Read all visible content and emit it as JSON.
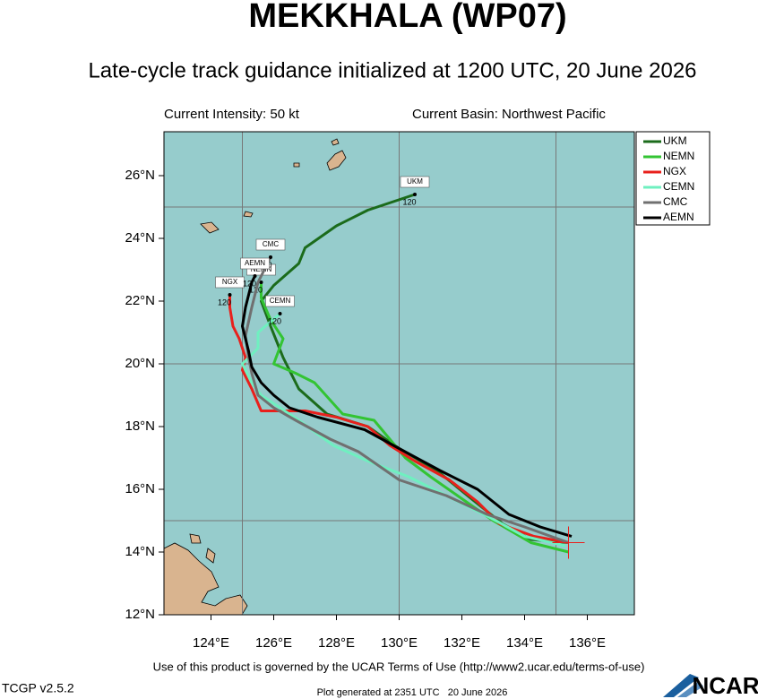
{
  "chart_data": {
    "type": "track",
    "title": "MEKKHALA (WP07)",
    "subtitle": "Late-cycle track guidance initialized at 1200 UTC, 20 June 2026",
    "intensity": "Current Intensity: 50 kt",
    "basin": "Current Basin: Northwest Pacific",
    "xlim": [
      122.5,
      137.5
    ],
    "ylim": [
      12,
      27.4
    ],
    "xticks": [
      {
        "value": 124,
        "label": "124°E"
      },
      {
        "value": 126,
        "label": "126°E"
      },
      {
        "value": 128,
        "label": "128°E"
      },
      {
        "value": 130,
        "label": "130°E"
      },
      {
        "value": 132,
        "label": "132°E"
      },
      {
        "value": 134,
        "label": "134°E"
      },
      {
        "value": 136,
        "label": "136°E"
      }
    ],
    "yticks": [
      {
        "value": 12,
        "label": "12°N"
      },
      {
        "value": 14,
        "label": "14°N"
      },
      {
        "value": 16,
        "label": "16°N"
      },
      {
        "value": 18,
        "label": "18°N"
      },
      {
        "value": 20,
        "label": "20°N"
      },
      {
        "value": 22,
        "label": "22°N"
      },
      {
        "value": 24,
        "label": "24°N"
      },
      {
        "value": 26,
        "label": "26°N"
      }
    ],
    "grid_lon": [
      125,
      130,
      135
    ],
    "grid_lat": [
      15,
      20,
      25
    ],
    "storm_position": {
      "lon": 135.4,
      "lat": 14.3
    },
    "series": [
      {
        "name": "UKM",
        "color": "#1b6b1b",
        "end_label": "120",
        "x": [
          135.4,
          134.2,
          133.3,
          132.3,
          131.2,
          130.0,
          129.0,
          127.7,
          126.8,
          126.3,
          125.9,
          125.6,
          126.0,
          126.8,
          127.0,
          128.0,
          129.0,
          130.5
        ],
        "values": [
          14.3,
          14.4,
          14.9,
          15.7,
          16.6,
          17.3,
          18.0,
          18.4,
          19.2,
          20.2,
          21.2,
          22.0,
          22.5,
          23.2,
          23.7,
          24.4,
          24.9,
          25.4
        ]
      },
      {
        "name": "NEMN",
        "color": "#33c433",
        "end_label": "120",
        "x": [
          135.4,
          134.2,
          133.0,
          132.0,
          131.0,
          130.2,
          129.7,
          129.2,
          128.2,
          127.3,
          126.7,
          126.0,
          126.3,
          125.9,
          125.6,
          125.6
        ],
        "values": [
          14.0,
          14.3,
          15.0,
          15.7,
          16.4,
          17.0,
          17.6,
          18.2,
          18.4,
          19.4,
          19.7,
          20.0,
          20.8,
          21.4,
          22.1,
          22.6
        ]
      },
      {
        "name": "NGX",
        "color": "#e8201c",
        "end_label": "120",
        "x": [
          135.4,
          134.3,
          133.2,
          132.5,
          131.6,
          130.5,
          129.7,
          129.0,
          128.0,
          127.0,
          126.0,
          125.6,
          125.3,
          125.0,
          125.1,
          124.9,
          124.7,
          124.6,
          124.6
        ],
        "values": [
          14.3,
          14.5,
          14.9,
          15.6,
          16.3,
          16.9,
          17.4,
          18.0,
          18.3,
          18.5,
          18.5,
          18.5,
          19.2,
          19.8,
          20.2,
          20.8,
          21.2,
          21.8,
          22.2
        ]
      },
      {
        "name": "CEMN",
        "color": "#6ff0c0",
        "end_label": "120",
        "x": [
          135.3,
          134.0,
          132.9,
          131.5,
          130.3,
          129.0,
          127.9,
          126.8,
          125.6,
          125.3,
          125.0,
          125.5,
          125.5,
          126.2
        ],
        "values": [
          14.2,
          14.5,
          15.1,
          15.8,
          16.4,
          16.9,
          17.4,
          18.2,
          19.0,
          19.4,
          20.0,
          20.5,
          21.0,
          21.6
        ]
      },
      {
        "name": "CMC",
        "color": "#707070",
        "end_label": "120",
        "x": [
          135.4,
          134.0,
          132.8,
          131.5,
          130.0,
          128.7,
          127.8,
          126.7,
          126.0,
          125.5,
          125.3,
          125.2,
          125.1,
          125.3,
          125.5,
          125.9
        ],
        "values": [
          14.3,
          14.8,
          15.2,
          15.8,
          16.3,
          17.2,
          17.6,
          18.2,
          18.6,
          19.0,
          19.7,
          20.2,
          20.9,
          21.8,
          22.6,
          23.4
        ]
      },
      {
        "name": "AEMN",
        "color": "#000000",
        "end_label": "120",
        "x": [
          135.5,
          134.5,
          133.5,
          132.5,
          131.3,
          130.0,
          128.9,
          127.4,
          126.5,
          126.0,
          125.6,
          125.3,
          125.2,
          125.0,
          125.1,
          125.3,
          125.4
        ],
        "values": [
          14.5,
          14.8,
          15.2,
          16.0,
          16.6,
          17.3,
          17.9,
          18.3,
          18.6,
          19.0,
          19.4,
          19.9,
          20.4,
          21.2,
          21.8,
          22.6,
          22.8
        ]
      }
    ],
    "terms": "Use of this product is governed by the UCAR Terms of Use (http://www2.ucar.edu/terms-of-use)",
    "version": "TCGP v2.5.2",
    "generated": "Plot generated at 2351 UTC   20 June 2026",
    "logo": "NCAR"
  }
}
